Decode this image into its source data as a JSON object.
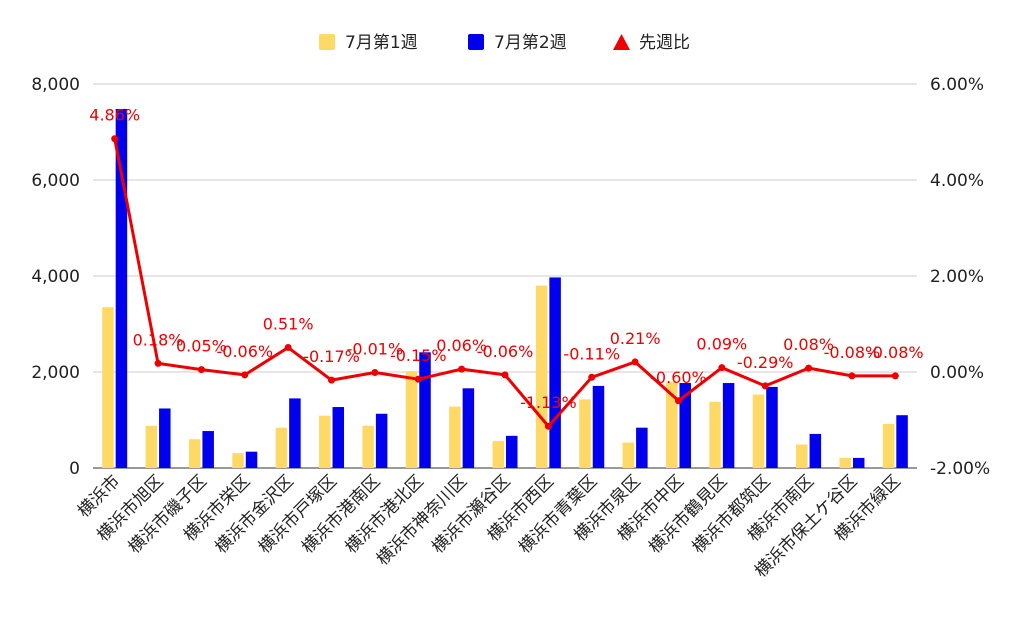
{
  "chart_data": {
    "type": "bar",
    "categories": [
      "横浜市",
      "横浜市旭区",
      "横浜市磯子区",
      "横浜市栄区",
      "横浜市金沢区",
      "横浜市戸塚区",
      "横浜市港南区",
      "横浜市港北区",
      "横浜市神奈川区",
      "横浜市瀬谷区",
      "横浜市西区",
      "横浜市青葉区",
      "横浜市泉区",
      "横浜市中区",
      "横浜市鶴見区",
      "横浜市都筑区",
      "横浜市南区",
      "横浜市保土ケ谷区",
      "横浜市緑区"
    ],
    "series": [
      {
        "name": "7月第1週",
        "kind": "bar",
        "axis": "left",
        "color": "#FFD966",
        "values": [
          3350,
          880,
          600,
          310,
          840,
          1090,
          880,
          2020,
          1280,
          560,
          3800,
          1430,
          530,
          1790,
          1380,
          1530,
          490,
          210,
          920
        ]
      },
      {
        "name": "7月第2週",
        "kind": "bar",
        "axis": "left",
        "color": "#0000EE",
        "values": [
          7480,
          1240,
          770,
          340,
          1450,
          1270,
          1130,
          2410,
          1660,
          670,
          3970,
          1710,
          840,
          1770,
          1770,
          1690,
          710,
          210,
          1100
        ]
      },
      {
        "name": "先週比",
        "kind": "line",
        "axis": "right",
        "color": "#EE0000",
        "marker": "triangle",
        "values": [
          4.86,
          0.18,
          0.05,
          -0.06,
          0.51,
          -0.17,
          -0.01,
          -0.15,
          0.06,
          -0.06,
          -1.13,
          -0.11,
          0.21,
          -0.6,
          0.09,
          -0.29,
          0.08,
          -0.08,
          -0.08
        ],
        "labels": [
          "4.86%",
          "0.18%",
          "0.05%",
          "-0.06%",
          "0.51%",
          "-0.17%",
          "-0.01%",
          "-0.15%",
          "0.06%",
          "-0.06%",
          "-1.13%",
          "-0.11%",
          "0.21%",
          "-0.60%",
          "0.09%",
          "-0.29%",
          "0.08%",
          "-0.08%",
          "-0.08%"
        ]
      }
    ],
    "y_left": {
      "lim": [
        0,
        8000
      ],
      "ticks": [
        0,
        2000,
        4000,
        6000,
        8000
      ],
      "tick_labels": [
        "0",
        "2,000",
        "4,000",
        "6,000",
        "8,000"
      ]
    },
    "y_right": {
      "lim": [
        -2,
        6
      ],
      "ticks": [
        -2,
        0,
        2,
        4,
        6
      ],
      "tick_labels": [
        "-2.00%",
        "0.00%",
        "2.00%",
        "4.00%",
        "6.00%"
      ]
    },
    "grid": true,
    "legend": {
      "position": "top-center"
    },
    "title": "",
    "xlabel": "",
    "ylabel": ""
  }
}
